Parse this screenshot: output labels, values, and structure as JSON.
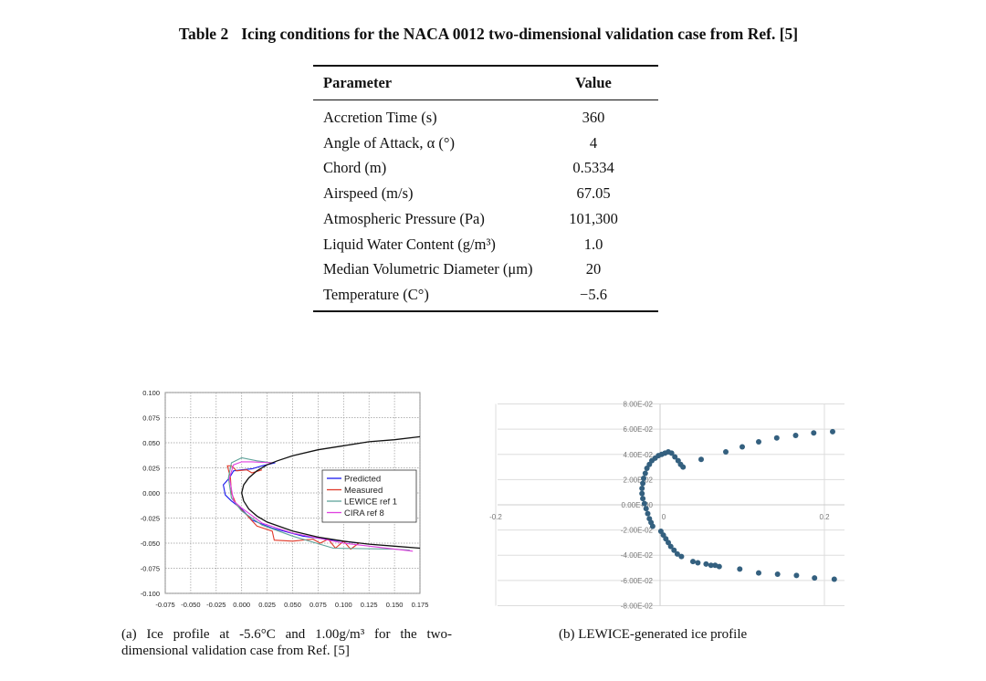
{
  "table": {
    "number": "Table 2",
    "title": "Icing conditions for the NACA 0012 two-dimensional validation case from Ref. [5]",
    "headers": [
      "Parameter",
      "Value"
    ],
    "rows": [
      {
        "parameter": "Accretion Time (s)",
        "value": "360"
      },
      {
        "parameter": "Angle of Attack, α (°)",
        "value": "4"
      },
      {
        "parameter": "Chord (m)",
        "value": "0.5334"
      },
      {
        "parameter": "Airspeed (m/s)",
        "value": "67.05"
      },
      {
        "parameter": "Atmospheric Pressure (Pa)",
        "value": "101,300"
      },
      {
        "parameter": "Liquid Water Content (g/m³)",
        "value": "1.0"
      },
      {
        "parameter": "Median Volumetric Diameter (μm)",
        "value": "20"
      },
      {
        "parameter": "Temperature (C°)",
        "value": "−5.6"
      }
    ]
  },
  "captions": {
    "a": "(a) Ice profile at -5.6°C and 1.00g/m³ for the two-dimensional validation case from Ref. [5]",
    "b": "(b) LEWICE-generated ice profile"
  },
  "chart_data": [
    {
      "type": "line",
      "xlim": [
        -0.075,
        0.175
      ],
      "ylim": [
        -0.1,
        0.1
      ],
      "xticks": [
        "-0.075",
        "-0.050",
        "-0.025",
        "0.000",
        "0.025",
        "0.050",
        "0.075",
        "0.100",
        "0.125",
        "0.150",
        "0.175"
      ],
      "yticks": [
        "0.100",
        "0.075",
        "0.050",
        "0.025",
        "0.000",
        "-0.025",
        "-0.050",
        "-0.075",
        "-0.100"
      ],
      "grid": true,
      "legend_placement": "center-right",
      "airfoil": {
        "color": "#111111",
        "points": [
          [
            0.175,
            0.056
          ],
          [
            0.15,
            0.053
          ],
          [
            0.125,
            0.051
          ],
          [
            0.1,
            0.047
          ],
          [
            0.075,
            0.043
          ],
          [
            0.05,
            0.037
          ],
          [
            0.035,
            0.032
          ],
          [
            0.025,
            0.028
          ],
          [
            0.015,
            0.022
          ],
          [
            0.007,
            0.015
          ],
          [
            0.002,
            0.008
          ],
          [
            0,
            0
          ],
          [
            0.002,
            -0.008
          ],
          [
            0.007,
            -0.016
          ],
          [
            0.015,
            -0.023
          ],
          [
            0.025,
            -0.029
          ],
          [
            0.05,
            -0.038
          ],
          [
            0.075,
            -0.044
          ],
          [
            0.1,
            -0.048
          ],
          [
            0.125,
            -0.051
          ],
          [
            0.15,
            -0.053
          ],
          [
            0.175,
            -0.055
          ]
        ]
      },
      "series": [
        {
          "name": "Predicted",
          "color": "#1a1aee",
          "points": [
            [
              0.033,
              0.03
            ],
            [
              0.02,
              0.027
            ],
            [
              0.01,
              0.024
            ],
            [
              0,
              0.023
            ],
            [
              -0.008,
              0.022
            ],
            [
              -0.012,
              0.015
            ],
            [
              -0.018,
              0.008
            ],
            [
              -0.016,
              -0.002
            ],
            [
              -0.01,
              -0.008
            ],
            [
              0,
              -0.016
            ],
            [
              0.01,
              -0.027
            ],
            [
              0.03,
              -0.035
            ],
            [
              0.06,
              -0.043
            ],
            [
              0.09,
              -0.047
            ],
            [
              0.115,
              -0.05
            ]
          ]
        },
        {
          "name": "Measured",
          "color": "#e03a2a",
          "points": [
            [
              0.02,
              0.023
            ],
            [
              0.01,
              0.02
            ],
            [
              0.005,
              0.023
            ],
            [
              -0.005,
              0.022
            ],
            [
              -0.01,
              0.027
            ],
            [
              -0.014,
              0.027
            ],
            [
              -0.011,
              0.015
            ],
            [
              -0.01,
              0
            ],
            [
              -0.005,
              -0.012
            ],
            [
              0.005,
              -0.022
            ],
            [
              0.015,
              -0.033
            ],
            [
              0.03,
              -0.038
            ],
            [
              0.032,
              -0.047
            ],
            [
              0.05,
              -0.048
            ],
            [
              0.07,
              -0.046
            ],
            [
              0.077,
              -0.05
            ],
            [
              0.085,
              -0.046
            ],
            [
              0.092,
              -0.055
            ],
            [
              0.1,
              -0.048
            ],
            [
              0.107,
              -0.056
            ],
            [
              0.115,
              -0.05
            ]
          ]
        },
        {
          "name": "LEWICE ref 1",
          "color": "#5fa39a",
          "points": [
            [
              0.03,
              0.03
            ],
            [
              0.015,
              0.032
            ],
            [
              0,
              0.035
            ],
            [
              -0.01,
              0.03
            ],
            [
              -0.013,
              0.015
            ],
            [
              -0.01,
              -0.005
            ],
            [
              0,
              -0.018
            ],
            [
              0.02,
              -0.032
            ],
            [
              0.05,
              -0.043
            ],
            [
              0.09,
              -0.055
            ],
            [
              0.15,
              -0.056
            ],
            [
              0.165,
              -0.057
            ]
          ]
        },
        {
          "name": "CIRA ref 8",
          "color": "#e040e0",
          "points": [
            [
              0.03,
              0.03
            ],
            [
              0.01,
              0.031
            ],
            [
              0,
              0.031
            ],
            [
              -0.008,
              0.028
            ],
            [
              -0.012,
              0.015
            ],
            [
              -0.008,
              -0.008
            ],
            [
              0,
              -0.015
            ],
            [
              0.02,
              -0.03
            ],
            [
              0.05,
              -0.04
            ],
            [
              0.1,
              -0.05
            ],
            [
              0.168,
              -0.058
            ]
          ]
        }
      ]
    },
    {
      "type": "scatter",
      "xlim": [
        -0.2,
        0.225
      ],
      "ylim": [
        -0.08,
        0.08
      ],
      "xticks": [
        "-0.2",
        "0",
        "0.2"
      ],
      "yticks": [
        "8.00E-02",
        "6.00E-02",
        "4.00E-02",
        "2.00E-02",
        "0.00E+00",
        "-2.00E-02",
        "-4.00E-02",
        "-6.00E-02",
        "-8.00E-02"
      ],
      "grid": true,
      "color": "#34607f",
      "points": [
        [
          0.05,
          0.036
        ],
        [
          0.08,
          0.042
        ],
        [
          0.1,
          0.046
        ],
        [
          0.12,
          0.05
        ],
        [
          0.142,
          0.053
        ],
        [
          0.165,
          0.055
        ],
        [
          0.187,
          0.057
        ],
        [
          0.21,
          0.058
        ],
        [
          0.028,
          0.03
        ],
        [
          0.025,
          0.032
        ],
        [
          0.022,
          0.035
        ],
        [
          0.018,
          0.038
        ],
        [
          0.014,
          0.041
        ],
        [
          0.01,
          0.042
        ],
        [
          0.006,
          0.041
        ],
        [
          0.002,
          0.04
        ],
        [
          -0.002,
          0.039
        ],
        [
          -0.006,
          0.037
        ],
        [
          -0.01,
          0.035
        ],
        [
          -0.013,
          0.032
        ],
        [
          -0.016,
          0.029
        ],
        [
          -0.018,
          0.025
        ],
        [
          -0.02,
          0.021
        ],
        [
          -0.021,
          0.017
        ],
        [
          -0.022,
          0.013
        ],
        [
          -0.022,
          0.009
        ],
        [
          -0.021,
          0.005
        ],
        [
          -0.019,
          0.001
        ],
        [
          -0.017,
          -0.003
        ],
        [
          -0.015,
          -0.007
        ],
        [
          -0.013,
          -0.011
        ],
        [
          -0.011,
          -0.014
        ],
        [
          -0.009,
          -0.017
        ],
        [
          0.001,
          -0.021
        ],
        [
          0.004,
          -0.024
        ],
        [
          0.007,
          -0.027
        ],
        [
          0.01,
          -0.03
        ],
        [
          0.013,
          -0.033
        ],
        [
          0.017,
          -0.036
        ],
        [
          0.021,
          -0.039
        ],
        [
          0.026,
          -0.041
        ],
        [
          0.04,
          -0.045
        ],
        [
          0.046,
          -0.046
        ],
        [
          0.056,
          -0.047
        ],
        [
          0.062,
          -0.048
        ],
        [
          0.067,
          -0.048
        ],
        [
          0.072,
          -0.049
        ],
        [
          0.097,
          -0.051
        ],
        [
          0.12,
          -0.054
        ],
        [
          0.143,
          -0.055
        ],
        [
          0.166,
          -0.056
        ],
        [
          0.188,
          -0.058
        ],
        [
          0.212,
          -0.059
        ]
      ]
    }
  ]
}
